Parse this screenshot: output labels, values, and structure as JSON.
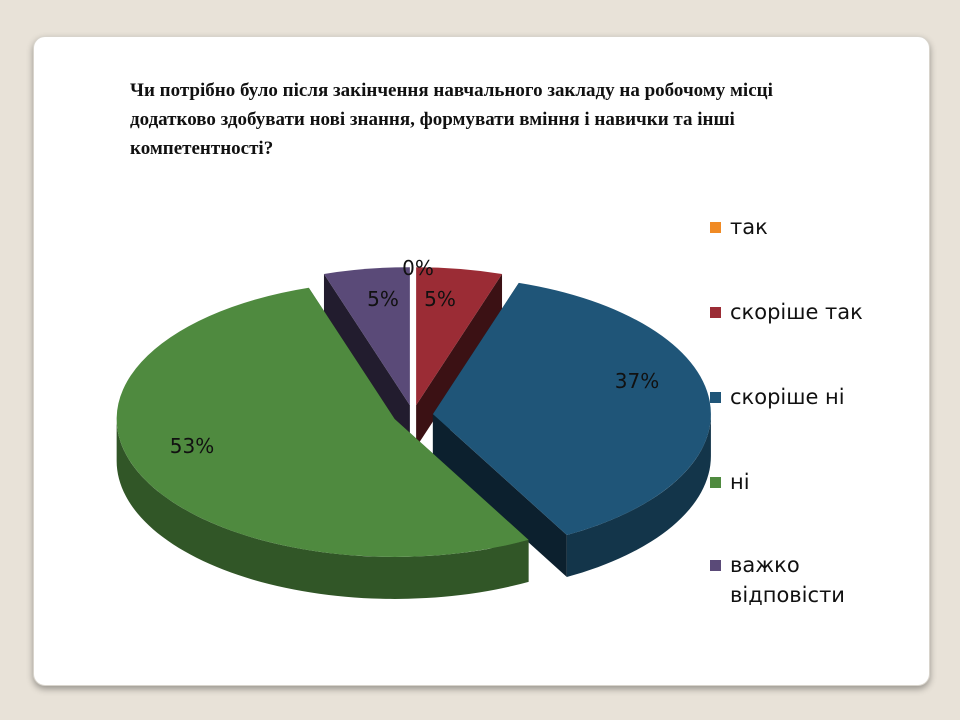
{
  "title": "Чи потрібно було після закінчення навчального закладу на робочому місці додатково здобувати нові знання, формувати вміння і навички та інші компетентності?",
  "chart_data": {
    "type": "pie",
    "style": "3d-exploded",
    "categories": [
      "так",
      "скоріше так",
      "скоріше ні",
      "ні",
      "важко відповісти"
    ],
    "values": [
      0,
      5,
      37,
      53,
      5
    ],
    "data_labels": [
      "0%",
      "5%",
      "37%",
      "53%",
      "5%"
    ],
    "colors": [
      "#f08a24",
      "#9b2c35",
      "#1f5578",
      "#4f8a3f",
      "#5a4a78"
    ],
    "legend_position": "right"
  }
}
